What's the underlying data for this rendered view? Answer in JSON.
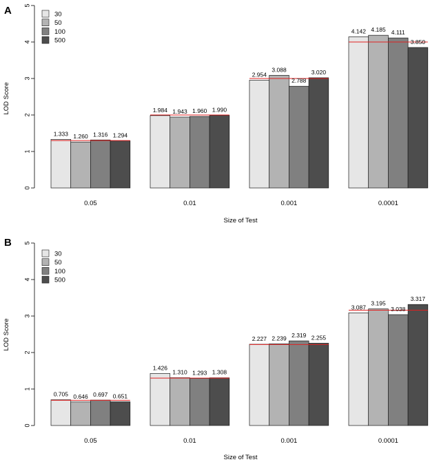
{
  "chart_data": [
    {
      "panel": "A",
      "type": "bar",
      "xlabel": "Size of Test",
      "ylabel": "LOD Score",
      "ylim": [
        0,
        5
      ],
      "yticks": [
        "0",
        "1",
        "2",
        "3",
        "4",
        "5"
      ],
      "categories": [
        "0.05",
        "0.01",
        "0.001",
        "0.0001"
      ],
      "series": [
        {
          "name": "30",
          "color": "#e6e6e6",
          "values": [
            1.333,
            1.984,
            2.954,
            4.142
          ],
          "labels": [
            "1.333",
            "1.984",
            "2.954",
            "4.142"
          ]
        },
        {
          "name": "50",
          "color": "#b3b3b3",
          "values": [
            1.26,
            1.943,
            3.088,
            4.185
          ],
          "labels": [
            "1.260",
            "1.943",
            "3.088",
            "4.185"
          ]
        },
        {
          "name": "100",
          "color": "#808080",
          "values": [
            1.316,
            1.96,
            2.788,
            4.111
          ],
          "labels": [
            "1.316",
            "1.960",
            "2.788",
            "4.111"
          ]
        },
        {
          "name": "500",
          "color": "#4d4d4d",
          "values": [
            1.294,
            1.99,
            3.02,
            3.85
          ],
          "labels": [
            "1.294",
            "1.990",
            "3.020",
            "3.850"
          ]
        }
      ],
      "reference_lines": [
        1.3,
        2.0,
        3.0,
        4.0
      ],
      "reference_color": "#e02020"
    },
    {
      "panel": "B",
      "type": "bar",
      "xlabel": "Size of Test",
      "ylabel": "LOD Score",
      "ylim": [
        0,
        5
      ],
      "yticks": [
        "0",
        "1",
        "2",
        "3",
        "4",
        "5"
      ],
      "categories": [
        "0.05",
        "0.01",
        "0.001",
        "0.0001"
      ],
      "series": [
        {
          "name": "30",
          "color": "#e6e6e6",
          "values": [
            0.705,
            1.426,
            2.227,
            3.087
          ],
          "labels": [
            "0.705",
            "1.426",
            "2.227",
            "3.087"
          ]
        },
        {
          "name": "50",
          "color": "#b3b3b3",
          "values": [
            0.646,
            1.31,
            2.239,
            3.195
          ],
          "labels": [
            "0.646",
            "1.310",
            "2.239",
            "3.195"
          ]
        },
        {
          "name": "100",
          "color": "#808080",
          "values": [
            0.697,
            1.293,
            2.319,
            3.038
          ],
          "labels": [
            "0.697",
            "1.293",
            "2.319",
            "3.038"
          ]
        },
        {
          "name": "500",
          "color": "#4d4d4d",
          "values": [
            0.651,
            1.308,
            2.255,
            3.317
          ],
          "labels": [
            "0.651",
            "1.308",
            "2.255",
            "3.317"
          ]
        }
      ],
      "reference_lines": [
        0.69,
        1.3,
        2.22,
        3.16
      ],
      "reference_color": "#e02020"
    }
  ]
}
